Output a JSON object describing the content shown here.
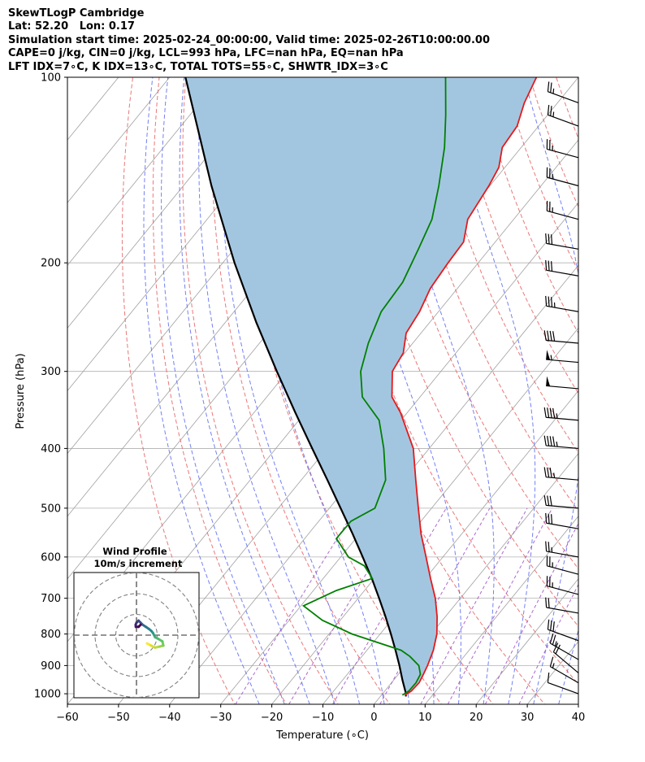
{
  "header": {
    "line1": "SkewTLogP Cambridge",
    "line2": "Lat: 52.20   Lon: 0.17",
    "line3": "Simulation start time: 2025-02-24_00:00:00, Valid time: 2025-02-26T10:00:00.00",
    "line4": "CAPE=0 j/kg, CIN=0 j/kg, LCL=993 hPa, LFC=nan hPa, EQ=nan hPa",
    "line5": "LFT IDX=7∘C, K IDX=13∘C, TOTAL TOTS=55∘C, SHWTR_IDX=3∘C"
  },
  "colors": {
    "temperature": "#e41a1c",
    "dewpoint": "#008000",
    "parcel": "#000000",
    "cape_fill": "#a3c6e0",
    "dry_adiabat": "#e66060",
    "moist_adiabat": "#5a6bef",
    "mixing_ratio": "#9d4fc4",
    "isotherm": "#a0a0a0"
  },
  "chart_data": [
    {
      "type": "line",
      "chart_kind": "skew-t log-p",
      "xlabel": "Temperature (∘C)",
      "ylabel": "Pressure (hPa)",
      "xlim": [
        -60,
        40
      ],
      "ylim": [
        1040,
        100
      ],
      "y_scale": "log",
      "x_ticks": [
        "−60",
        "−50",
        "−40",
        "−30",
        "−20",
        "−10",
        "0",
        "10",
        "20",
        "30",
        "40"
      ],
      "y_ticks": [
        "100",
        "200",
        "300",
        "400",
        "500",
        "600",
        "700",
        "800",
        "900",
        "1000"
      ],
      "grid": true,
      "series": [
        {
          "key": "temperature",
          "pressure": [
            1005,
            990,
            960,
            930,
            900,
            850,
            800,
            750,
            700,
            650,
            600,
            550,
            500,
            450,
            400,
            350,
            330,
            300,
            280,
            260,
            240,
            220,
            200,
            185,
            170,
            150,
            140,
            130,
            120,
            110,
            100
          ],
          "values": [
            4.6,
            5.2,
            5.4,
            4.9,
            4.3,
            3.0,
            1.1,
            -1.6,
            -4.9,
            -9.0,
            -13.3,
            -18.0,
            -22.6,
            -27.6,
            -33.1,
            -41.3,
            -45.5,
            -49.5,
            -50.3,
            -52.9,
            -53.7,
            -55.3,
            -55.9,
            -56.2,
            -59.0,
            -60.2,
            -61.2,
            -63.7,
            -64.2,
            -66.5,
            -68.2
          ]
        },
        {
          "key": "dewpoint",
          "pressure": [
            1005,
            990,
            960,
            930,
            900,
            870,
            850,
            800,
            760,
            720,
            680,
            650,
            620,
            600,
            560,
            525,
            500,
            450,
            400,
            360,
            330,
            300,
            270,
            240,
            215,
            190,
            170,
            150,
            130,
            115,
            100
          ],
          "values": [
            4.1,
            4.7,
            4.8,
            4.3,
            2.6,
            -0.6,
            -3.3,
            -15.5,
            -23.5,
            -29.5,
            -25.5,
            -20.4,
            -24.0,
            -28.5,
            -33.8,
            -33.7,
            -31.1,
            -33.5,
            -38.9,
            -44.3,
            -51.3,
            -55.7,
            -58.7,
            -61.2,
            -61.7,
            -63.9,
            -66.0,
            -70.0,
            -75.0,
            -80.0,
            -86.0
          ]
        },
        {
          "key": "parcel",
          "pressure": [
            1010,
            993,
            950,
            900,
            850,
            800,
            750,
            700,
            650,
            600,
            550,
            500,
            450,
            400,
            350,
            300,
            250,
            200,
            150,
            100
          ],
          "values": [
            5.0,
            4.2,
            1.7,
            -1.2,
            -4.4,
            -7.9,
            -11.7,
            -15.9,
            -20.5,
            -25.7,
            -31.4,
            -37.8,
            -44.9,
            -52.9,
            -61.9,
            -72.1,
            -83.9,
            -97.7,
            -114.5,
            -136.9
          ]
        }
      ]
    },
    {
      "type": "scatter",
      "chart_kind": "hodograph",
      "title": "Wind Profile",
      "subtitle": "10m/s increment",
      "ring_step": 10,
      "u": [
        5.1,
        7.0,
        9.0,
        11.2,
        13.0,
        12.5,
        10.5,
        9.0,
        8.5,
        8.0,
        7.2,
        6.0,
        4.5,
        3.0,
        2.0,
        1.0,
        0.0,
        -0.4,
        -0.3,
        1.0,
        2.0
      ],
      "v": [
        -4.0,
        -5.0,
        -6.0,
        -5.5,
        -5.0,
        -3.0,
        -1.8,
        -1.0,
        0.0,
        1.0,
        2.0,
        3.0,
        4.0,
        5.0,
        6.0,
        7.0,
        6.0,
        5.0,
        4.0,
        4.0,
        5.0
      ]
    },
    {
      "type": "barbs",
      "chart_kind": "wind barbs",
      "pressure": [
        1000,
        960,
        925,
        880,
        820,
        740,
        690,
        640,
        600,
        540,
        500,
        450,
        400,
        360,
        320,
        290,
        270,
        240,
        210,
        190,
        170,
        150,
        135,
        120,
        110
      ],
      "speed_kt": [
        10,
        15,
        20,
        25,
        30,
        20,
        25,
        25,
        25,
        30,
        30,
        35,
        45,
        45,
        50,
        55,
        40,
        35,
        30,
        30,
        25,
        25,
        25,
        25,
        25
      ],
      "direction_deg": [
        290,
        300,
        310,
        300,
        290,
        280,
        285,
        285,
        280,
        280,
        275,
        275,
        275,
        275,
        275,
        275,
        275,
        280,
        280,
        280,
        285,
        285,
        285,
        290,
        290
      ]
    }
  ]
}
